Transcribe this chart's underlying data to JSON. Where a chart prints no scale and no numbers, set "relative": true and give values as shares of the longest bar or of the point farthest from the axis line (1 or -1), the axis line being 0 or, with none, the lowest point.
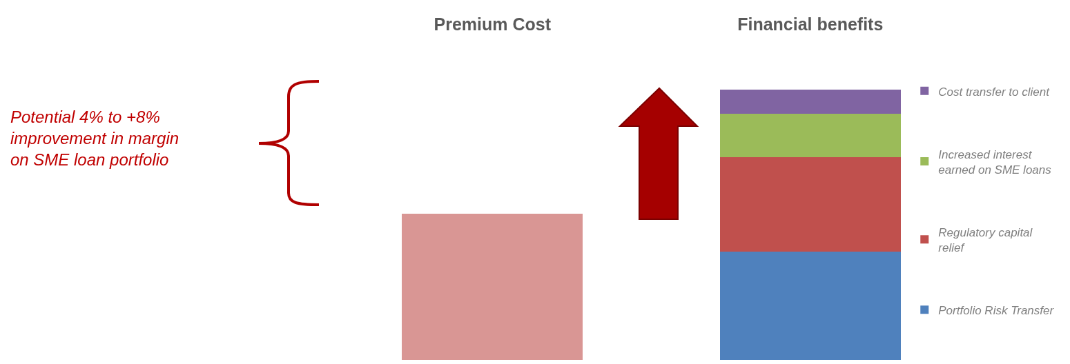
{
  "chart_data": {
    "type": "bar",
    "relative": true,
    "stacked": true,
    "categories": [
      "Premium Cost",
      "Financial benefits"
    ],
    "grid": false,
    "legend": "right",
    "series": [
      {
        "color": "#d99694",
        "values": [
          0.54,
          null
        ]
      },
      {
        "name": "Portfolio Risk Transfer",
        "color": "#4f81bd",
        "values": [
          null,
          0.4
        ]
      },
      {
        "name": "Regulatory capital relief",
        "color": "#c0504d",
        "values": [
          null,
          0.35
        ]
      },
      {
        "name": "Increased interest earned on SME loans",
        "color": "#9bbb59",
        "values": [
          null,
          0.16
        ]
      },
      {
        "name": "Cost transfer to client",
        "color": "#8064a2",
        "values": [
          null,
          0.09
        ]
      }
    ],
    "annotations": [
      "Potential 4% to +8% improvement in margin on SME loan portfolio"
    ]
  }
}
